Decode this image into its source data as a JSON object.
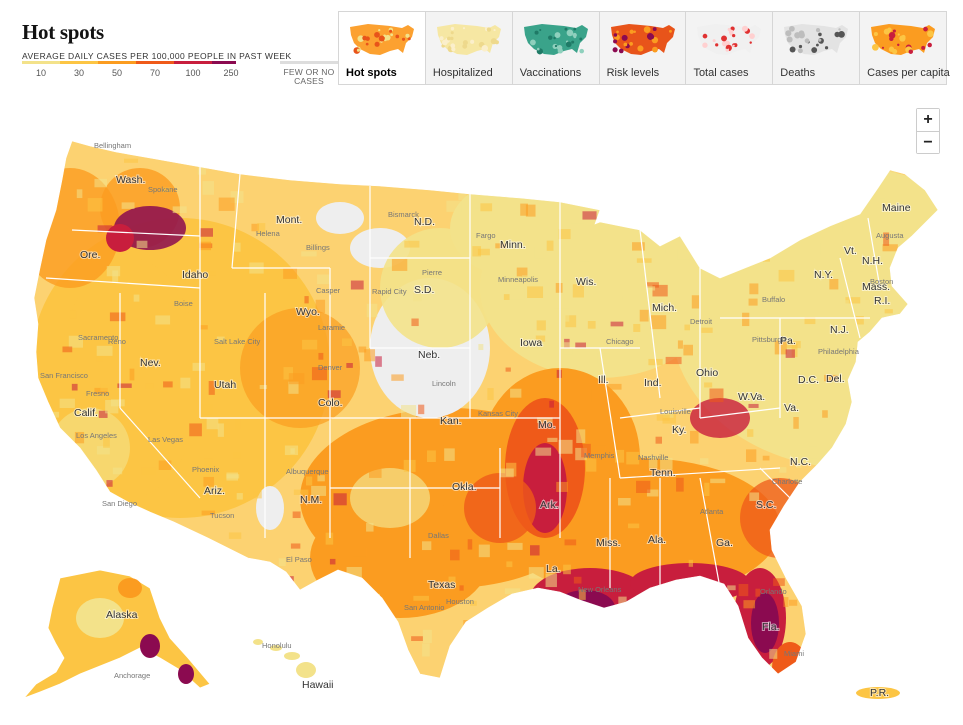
{
  "header": {
    "title": "Hot spots",
    "subtitle": "AVERAGE DAILY CASES PER 100,000 PEOPLE IN PAST WEEK"
  },
  "legend": {
    "ticks": [
      "10",
      "30",
      "50",
      "70",
      "100",
      "250"
    ],
    "few_label_1": "FEW OR NO",
    "few_label_2": "CASES",
    "colors": [
      "#f3e28a",
      "#fcc544",
      "#fb9c20",
      "#ef5a19",
      "#c81e3d",
      "#8b0a50"
    ],
    "few_color": "#dddddd"
  },
  "tabs": [
    {
      "label": "Hot spots",
      "active": true,
      "thumb_colors": [
        "#fca130",
        "#f3e28a",
        "#e8541a"
      ]
    },
    {
      "label": "Hospitalized",
      "active": false,
      "thumb_colors": [
        "#f6e7a3",
        "#fbefcb",
        "#eed98c"
      ]
    },
    {
      "label": "Vaccinations",
      "active": false,
      "thumb_colors": [
        "#3aa38a",
        "#8fd0bd",
        "#1f7a66"
      ]
    },
    {
      "label": "Risk levels",
      "active": false,
      "thumb_colors": [
        "#e8541a",
        "#fb9c20",
        "#8b0a50"
      ]
    },
    {
      "label": "Total cases",
      "active": false,
      "thumb_colors": [
        "#f0f0f0",
        "#e03131",
        "#ffd0d0"
      ]
    },
    {
      "label": "Deaths",
      "active": false,
      "thumb_colors": [
        "#e3e3e3",
        "#555555",
        "#bdbdbd"
      ]
    },
    {
      "label": "Cases per capita",
      "active": false,
      "thumb_colors": [
        "#fb9c20",
        "#c81e3d",
        "#fcc544"
      ]
    }
  ],
  "zoom": {
    "in": "+",
    "out": "−"
  },
  "map": {
    "land_color": "#fcd271",
    "state_labels": [
      "Wash.",
      "Ore.",
      "Calif.",
      "Nev.",
      "Idaho",
      "Mont.",
      "Wyo.",
      "Utah",
      "Ariz.",
      "Colo.",
      "N.M.",
      "N.D.",
      "S.D.",
      "Neb.",
      "Kan.",
      "Okla.",
      "Texas",
      "Minn.",
      "Iowa",
      "Mo.",
      "Ark.",
      "La.",
      "Wis.",
      "Ill.",
      "Mich.",
      "Ind.",
      "Ohio",
      "Ky.",
      "Tenn.",
      "Miss.",
      "Ala.",
      "Ga.",
      "Fla.",
      "S.C.",
      "N.C.",
      "Va.",
      "W.Va.",
      "Pa.",
      "N.Y.",
      "Vt.",
      "N.H.",
      "Maine",
      "Mass.",
      "R.I.",
      "N.J.",
      "D.C.",
      "Del.",
      "Alaska",
      "Hawaii",
      "P.R."
    ],
    "city_labels": [
      "Bellingham",
      "Spokane",
      "Helena",
      "Billings",
      "Boise",
      "Salt Lake City",
      "Las Vegas",
      "Phoenix",
      "Tucson",
      "Denver",
      "Albuquerque",
      "El Paso",
      "Fargo",
      "Minneapolis",
      "Chicago",
      "Detroit",
      "Kansas City",
      "Memphis",
      "Dallas",
      "Houston",
      "San Antonio",
      "Atlanta",
      "Miami",
      "Orlando",
      "New Orleans",
      "Philadelphia",
      "Boston",
      "Augusta",
      "Sacramento",
      "San Francisco",
      "Los Angeles",
      "San Diego",
      "Lincoln",
      "Pierre",
      "Bismarck",
      "Rapid City",
      "Casper",
      "Laramie",
      "Reno",
      "Fresno",
      "Charlotte",
      "Nashville",
      "Louisville",
      "Pittsburgh",
      "Buffalo",
      "Anchorage",
      "Honolulu"
    ]
  }
}
